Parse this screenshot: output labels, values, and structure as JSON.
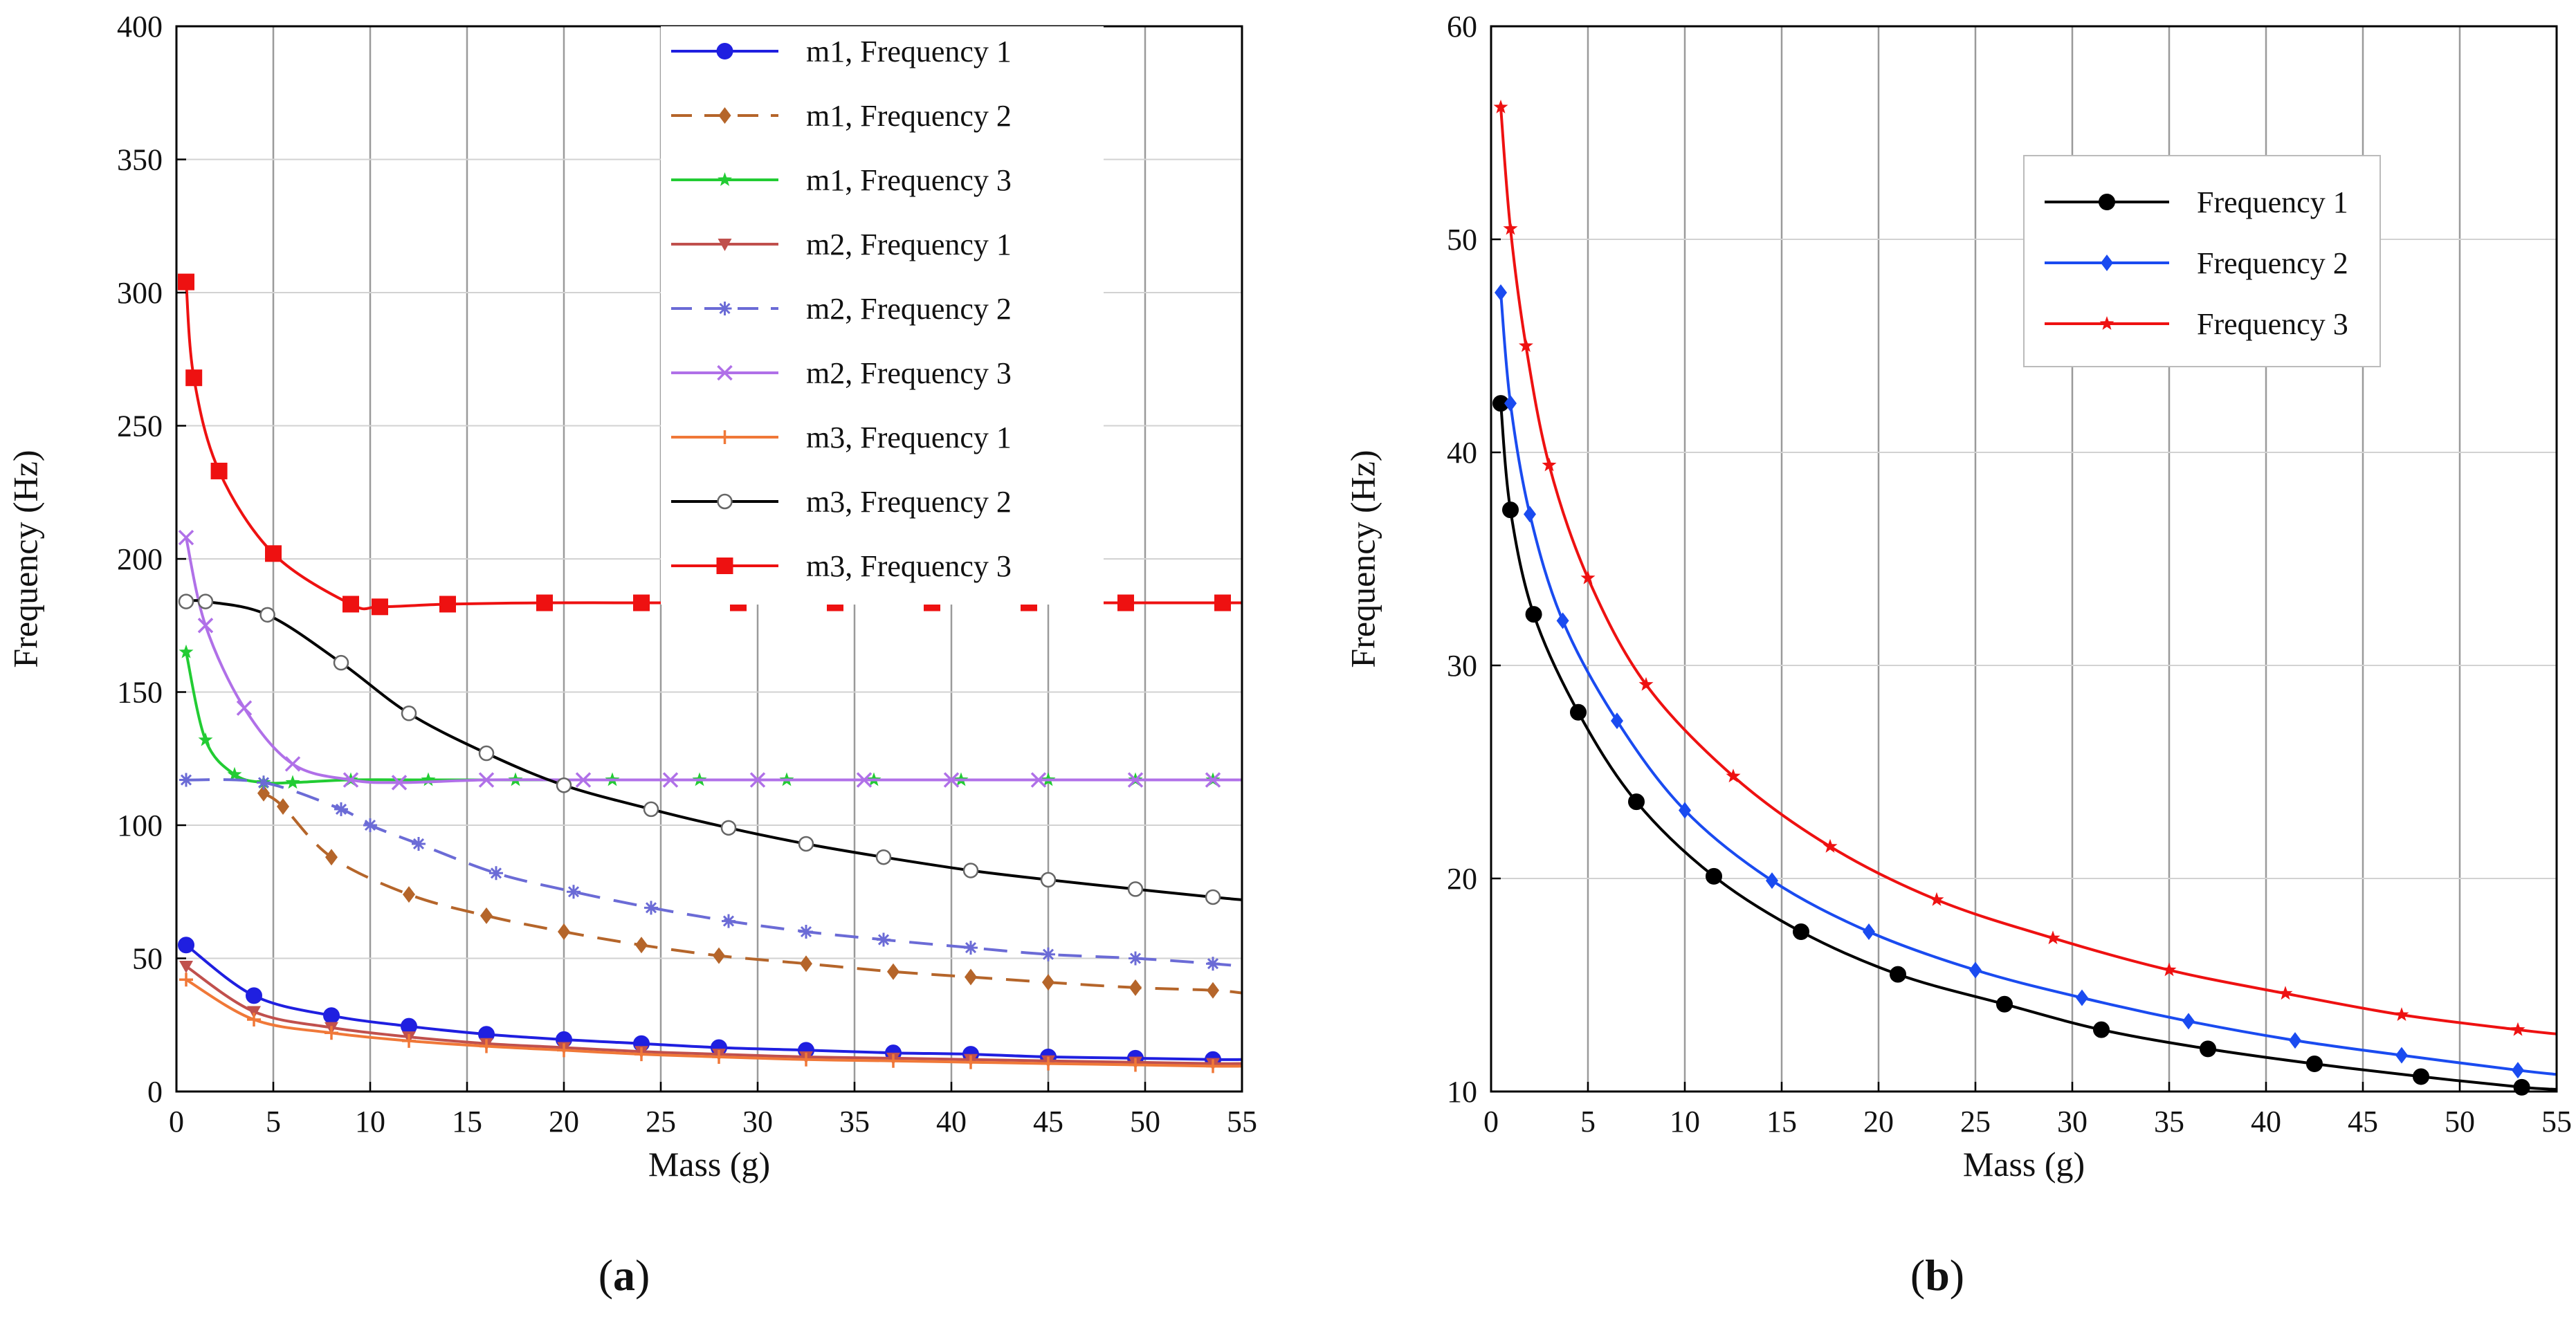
{
  "chart_data": [
    {
      "type": "line",
      "panel_label": "(a)",
      "panel_letter": "a",
      "xlabel": "Mass (g)",
      "ylabel": "Frequency (Hz)",
      "xlim": [
        0,
        55
      ],
      "ylim": [
        0,
        400
      ],
      "xticks": [
        0,
        5,
        10,
        15,
        20,
        25,
        30,
        35,
        40,
        45,
        50,
        55
      ],
      "yticks": [
        0,
        50,
        100,
        150,
        200,
        250,
        300,
        350,
        400
      ],
      "grid": true,
      "legend_position": "top-right",
      "series": [
        {
          "name": "m1, Frequency 1",
          "color": "#1f1fe0",
          "dash": "solid",
          "marker": "circle-filled",
          "x": [
            0.5,
            4,
            8,
            12,
            16,
            20,
            24,
            28,
            32.5,
            37,
            41,
            45,
            49.5,
            53.5,
            55
          ],
          "y": [
            55,
            36,
            28.5,
            24.5,
            21.5,
            19.5,
            18,
            16.5,
            15.5,
            14.5,
            14,
            13,
            12.5,
            12,
            12
          ]
        },
        {
          "name": "m1, Frequency 2",
          "color": "#b5652a",
          "dash": "dashed",
          "marker": "diamond",
          "x": [
            4.5,
            5.5,
            8,
            12,
            16,
            20,
            24,
            28,
            32.5,
            37,
            41,
            45,
            49.5,
            53.5,
            55
          ],
          "y": [
            112,
            107,
            88,
            74,
            66,
            60,
            55,
            51,
            48,
            45,
            43,
            41,
            39,
            38,
            37
          ]
        },
        {
          "name": "m1, Frequency 3",
          "color": "#22cc33",
          "dash": "solid",
          "marker": "star",
          "x": [
            0.5,
            1.5,
            3,
            4.5,
            6,
            9,
            13,
            17.5,
            22.5,
            27,
            31.5,
            36,
            40.5,
            45,
            49.5,
            53.5,
            55
          ],
          "y": [
            165,
            132,
            119,
            116,
            116,
            117,
            117,
            117,
            117,
            117,
            117,
            117,
            117,
            117,
            117,
            117,
            117
          ]
        },
        {
          "name": "m2, Frequency 1",
          "color": "#c0504d",
          "dash": "solid",
          "marker": "triangle-down",
          "x": [
            0.5,
            4,
            8,
            12,
            16,
            20,
            24,
            28,
            32.5,
            37,
            41,
            45,
            49.5,
            53.5,
            55
          ],
          "y": [
            47,
            30,
            24,
            20.5,
            18,
            16.5,
            15,
            14,
            13,
            12.5,
            12,
            11.5,
            11,
            10.5,
            10.5
          ]
        },
        {
          "name": "m2, Frequency 2",
          "color": "#6b6bd6",
          "dash": "dashed",
          "marker": "asterisk",
          "x": [
            0.5,
            4.5,
            8.5,
            10,
            12.5,
            16.5,
            20.5,
            24.5,
            28.5,
            32.5,
            36.5,
            41,
            45,
            49.5,
            53.5,
            55
          ],
          "y": [
            117,
            116,
            106,
            100,
            93,
            82,
            75,
            69,
            64,
            60,
            57,
            54,
            51.5,
            50,
            48,
            47
          ]
        },
        {
          "name": "m2, Frequency 3",
          "color": "#b070e8",
          "dash": "solid",
          "marker": "x",
          "x": [
            0.5,
            1.5,
            3.5,
            6,
            9,
            11.5,
            16,
            21,
            25.5,
            30,
            35.5,
            40,
            44.5,
            49.5,
            53.5,
            55
          ],
          "y": [
            208,
            175,
            144,
            123,
            117,
            116,
            117,
            117,
            117,
            117,
            117,
            117,
            117,
            117,
            117,
            117
          ]
        },
        {
          "name": "m3, Frequency 1",
          "color": "#f07838",
          "dash": "solid",
          "marker": "plus",
          "x": [
            0.5,
            4,
            8,
            12,
            16,
            20,
            24,
            28,
            32.5,
            37,
            41,
            45,
            49.5,
            53.5,
            55
          ],
          "y": [
            42,
            27,
            22,
            19,
            17,
            15.5,
            14,
            13,
            12,
            11.5,
            11,
            10.5,
            10,
            9.5,
            9.5
          ]
        },
        {
          "name": "m3, Frequency 2",
          "color": "#000000",
          "dash": "solid",
          "marker": "circle-open",
          "x": [
            0.5,
            1.5,
            4.7,
            8.5,
            12,
            16,
            20,
            24.5,
            28.5,
            32.5,
            36.5,
            41,
            45,
            49.5,
            53.5,
            55
          ],
          "y": [
            184,
            184,
            179,
            161,
            142,
            127,
            115,
            106,
            99,
            93,
            88,
            83,
            79.5,
            76,
            73,
            72
          ]
        },
        {
          "name": "m3, Frequency 3",
          "color": "#ee1111",
          "dash": "solid",
          "marker": "square",
          "x": [
            0.5,
            0.9,
            2.2,
            5,
            9,
            10.5,
            14,
            19,
            24,
            29,
            34,
            39,
            44,
            49,
            54,
            55
          ],
          "y": [
            304,
            268,
            233,
            202,
            183,
            182,
            183,
            183.5,
            183.5,
            183.5,
            183.5,
            183.5,
            183.5,
            183.5,
            183.5,
            183.5
          ]
        }
      ]
    },
    {
      "type": "line",
      "panel_label": "(b)",
      "panel_letter": "b",
      "xlabel": "Mass (g)",
      "ylabel": "Frequency (Hz)",
      "xlim": [
        0,
        55
      ],
      "ylim": [
        10,
        60
      ],
      "xticks": [
        0,
        5,
        10,
        15,
        20,
        25,
        30,
        35,
        40,
        45,
        50,
        55
      ],
      "yticks": [
        10,
        20,
        30,
        40,
        50,
        60
      ],
      "grid": true,
      "legend_position": "upper-right",
      "series": [
        {
          "name": "Frequency 1",
          "color": "#000000",
          "marker": "circle-filled",
          "x": [
            0.5,
            1,
            2.2,
            4.5,
            7.5,
            11.5,
            16,
            21,
            26.5,
            31.5,
            37,
            42.5,
            48,
            53.2,
            55
          ],
          "y": [
            42.3,
            37.3,
            32.4,
            27.8,
            23.6,
            20.1,
            17.5,
            15.5,
            14.1,
            12.9,
            12,
            11.3,
            10.7,
            10.2,
            10.1
          ]
        },
        {
          "name": "Frequency 2",
          "color": "#1a4bf0",
          "marker": "diamond",
          "x": [
            0.5,
            1,
            2,
            3.7,
            6.5,
            10,
            14.5,
            19.5,
            25,
            30.5,
            36,
            41.5,
            47,
            53,
            55
          ],
          "y": [
            47.5,
            42.3,
            37.1,
            32.1,
            27.4,
            23.2,
            19.9,
            17.5,
            15.7,
            14.4,
            13.3,
            12.4,
            11.7,
            11,
            10.8
          ]
        },
        {
          "name": "Frequency 3",
          "color": "#ee1111",
          "marker": "star",
          "x": [
            0.5,
            1,
            1.8,
            3,
            5,
            8,
            12.5,
            17.5,
            23,
            29,
            35,
            41,
            47,
            53,
            55
          ],
          "y": [
            56.2,
            50.5,
            45,
            39.4,
            34.1,
            29.1,
            24.8,
            21.5,
            19,
            17.2,
            15.7,
            14.6,
            13.6,
            12.9,
            12.7
          ]
        }
      ]
    }
  ]
}
